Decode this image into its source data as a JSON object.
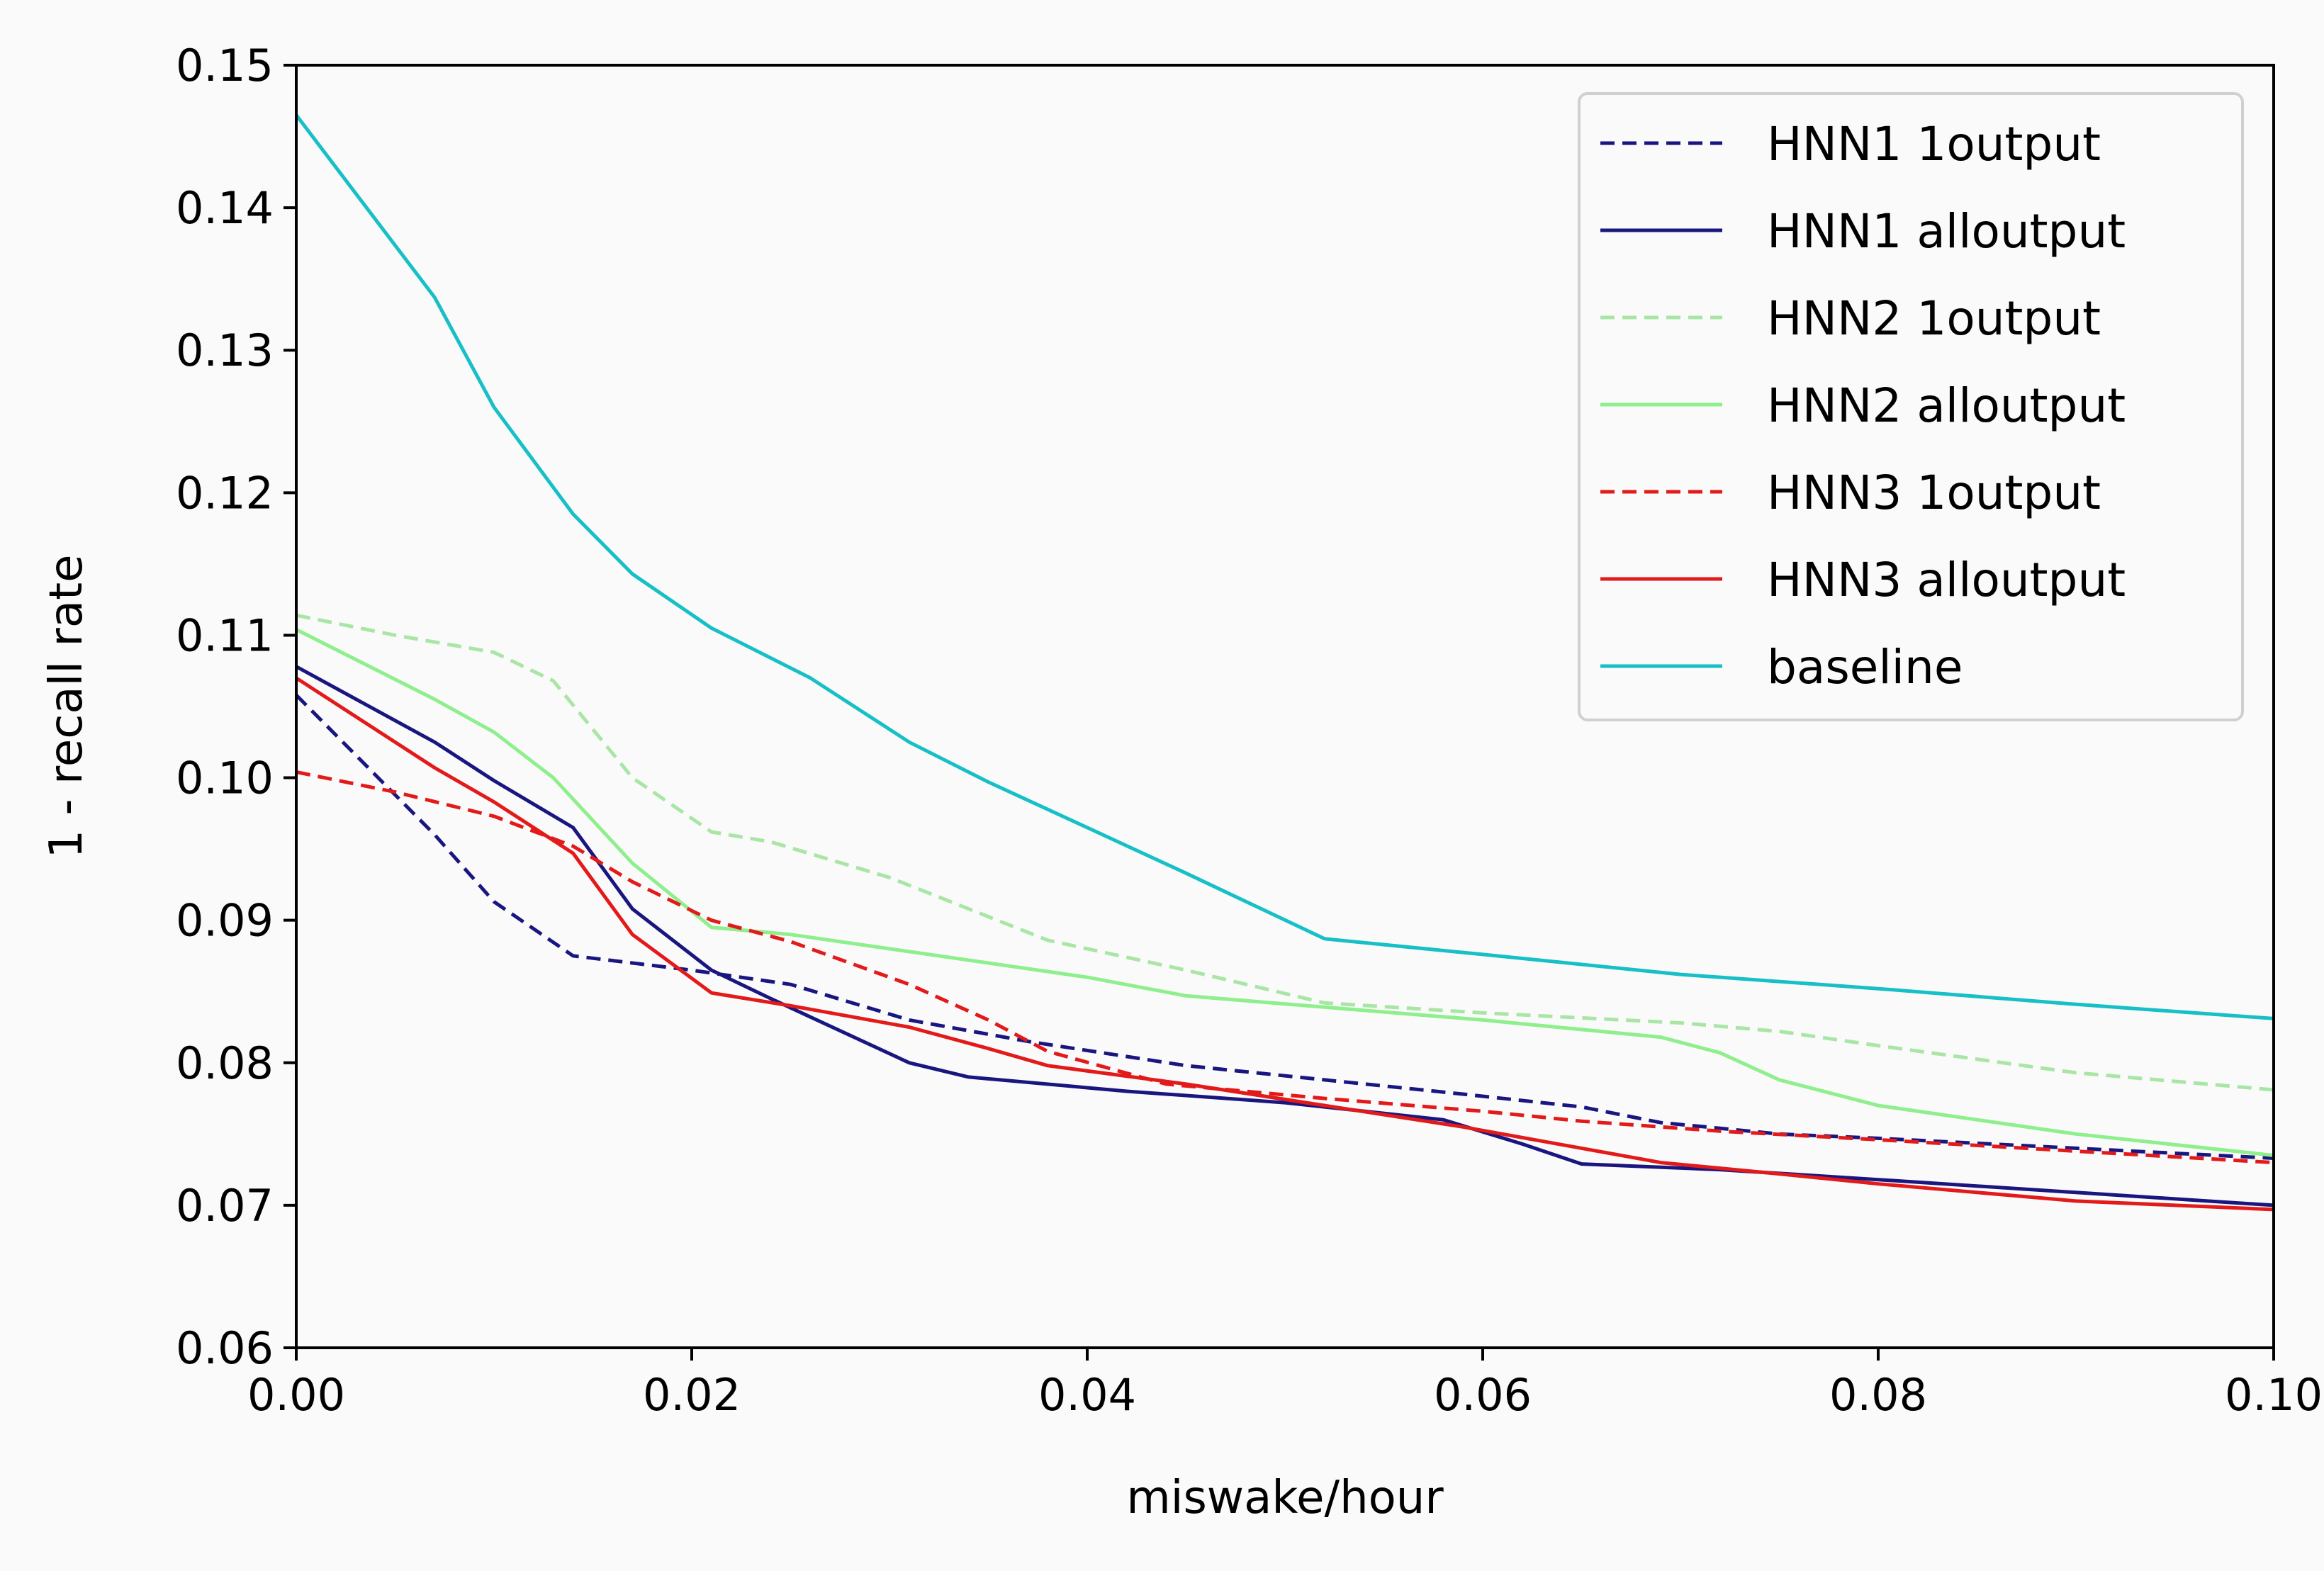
{
  "chart_data": {
    "type": "line",
    "title": "",
    "xlabel": "miswake/hour",
    "ylabel": "1 - recall rate",
    "xlim": [
      0.0,
      0.1
    ],
    "ylim": [
      0.06,
      0.15
    ],
    "xticks": [
      "0.00",
      "0.02",
      "0.04",
      "0.06",
      "0.08",
      "0.10"
    ],
    "yticks": [
      "0.06",
      "0.07",
      "0.08",
      "0.09",
      "0.10",
      "0.11",
      "0.12",
      "0.13",
      "0.14",
      "0.15"
    ],
    "xtick_values": [
      0.0,
      0.02,
      0.04,
      0.06,
      0.08,
      0.1
    ],
    "ytick_values": [
      0.06,
      0.07,
      0.08,
      0.09,
      0.1,
      0.11,
      0.12,
      0.13,
      0.14,
      0.15
    ],
    "grid": false,
    "legend_position": "top-right",
    "series": [
      {
        "name": "HNN1 1output",
        "color": "#1a1680",
        "style": "dashed",
        "points": [
          [
            0.0,
            0.1058
          ],
          [
            0.007,
            0.096
          ],
          [
            0.01,
            0.0913
          ],
          [
            0.014,
            0.0875
          ],
          [
            0.02,
            0.0865
          ],
          [
            0.025,
            0.0855
          ],
          [
            0.031,
            0.083
          ],
          [
            0.037,
            0.0815
          ],
          [
            0.045,
            0.0798
          ],
          [
            0.052,
            0.0788
          ],
          [
            0.059,
            0.0778
          ],
          [
            0.065,
            0.0769
          ],
          [
            0.069,
            0.0758
          ],
          [
            0.075,
            0.075
          ],
          [
            0.08,
            0.0747
          ],
          [
            0.09,
            0.074
          ],
          [
            0.1,
            0.0733
          ]
        ]
      },
      {
        "name": "HNN1 alloutput",
        "color": "#1a1680",
        "style": "solid",
        "points": [
          [
            0.0,
            0.1078
          ],
          [
            0.007,
            0.1025
          ],
          [
            0.01,
            0.0998
          ],
          [
            0.014,
            0.0965
          ],
          [
            0.017,
            0.0908
          ],
          [
            0.021,
            0.0865
          ],
          [
            0.024,
            0.0845
          ],
          [
            0.031,
            0.08
          ],
          [
            0.034,
            0.079
          ],
          [
            0.042,
            0.078
          ],
          [
            0.05,
            0.0772
          ],
          [
            0.058,
            0.076
          ],
          [
            0.062,
            0.0743
          ],
          [
            0.065,
            0.0729
          ],
          [
            0.072,
            0.0725
          ],
          [
            0.08,
            0.0718
          ],
          [
            0.09,
            0.0709
          ],
          [
            0.1,
            0.07
          ]
        ]
      },
      {
        "name": "HNN2 1output",
        "color": "#a9e6a6",
        "style": "dashed",
        "points": [
          [
            0.0,
            0.1114
          ],
          [
            0.005,
            0.11
          ],
          [
            0.01,
            0.1088
          ],
          [
            0.013,
            0.1068
          ],
          [
            0.017,
            0.1
          ],
          [
            0.021,
            0.0962
          ],
          [
            0.024,
            0.0955
          ],
          [
            0.03,
            0.093
          ],
          [
            0.038,
            0.0886
          ],
          [
            0.045,
            0.0865
          ],
          [
            0.052,
            0.0842
          ],
          [
            0.06,
            0.0835
          ],
          [
            0.07,
            0.0828
          ],
          [
            0.075,
            0.0822
          ],
          [
            0.08,
            0.0812
          ],
          [
            0.09,
            0.0793
          ],
          [
            0.1,
            0.0781
          ]
        ]
      },
      {
        "name": "HNN2 alloutput",
        "color": "#8eef8c",
        "style": "solid",
        "points": [
          [
            0.0,
            0.1104
          ],
          [
            0.007,
            0.1055
          ],
          [
            0.01,
            0.1032
          ],
          [
            0.013,
            0.1
          ],
          [
            0.017,
            0.094
          ],
          [
            0.021,
            0.0895
          ],
          [
            0.025,
            0.089
          ],
          [
            0.031,
            0.0878
          ],
          [
            0.04,
            0.086
          ],
          [
            0.045,
            0.0847
          ],
          [
            0.052,
            0.0839
          ],
          [
            0.06,
            0.083
          ],
          [
            0.069,
            0.0818
          ],
          [
            0.072,
            0.0807
          ],
          [
            0.075,
            0.0788
          ],
          [
            0.08,
            0.077
          ],
          [
            0.09,
            0.075
          ],
          [
            0.1,
            0.0735
          ]
        ]
      },
      {
        "name": "HNN3 1output",
        "color": "#e31a1a",
        "style": "dashed",
        "points": [
          [
            0.0,
            0.1004
          ],
          [
            0.005,
            0.099
          ],
          [
            0.01,
            0.0973
          ],
          [
            0.014,
            0.0952
          ],
          [
            0.017,
            0.0927
          ],
          [
            0.021,
            0.09
          ],
          [
            0.025,
            0.0885
          ],
          [
            0.031,
            0.0855
          ],
          [
            0.035,
            0.083
          ],
          [
            0.038,
            0.0808
          ],
          [
            0.044,
            0.0785
          ],
          [
            0.052,
            0.0775
          ],
          [
            0.06,
            0.0766
          ],
          [
            0.065,
            0.0759
          ],
          [
            0.072,
            0.0752
          ],
          [
            0.08,
            0.0746
          ],
          [
            0.09,
            0.0738
          ],
          [
            0.1,
            0.073
          ]
        ]
      },
      {
        "name": "HNN3 alloutput",
        "color": "#e31a1a",
        "style": "solid",
        "points": [
          [
            0.0,
            0.107
          ],
          [
            0.007,
            0.1007
          ],
          [
            0.01,
            0.0983
          ],
          [
            0.014,
            0.0947
          ],
          [
            0.017,
            0.089
          ],
          [
            0.021,
            0.0849
          ],
          [
            0.025,
            0.084
          ],
          [
            0.031,
            0.0825
          ],
          [
            0.035,
            0.081
          ],
          [
            0.038,
            0.0798
          ],
          [
            0.045,
            0.0785
          ],
          [
            0.052,
            0.077
          ],
          [
            0.059,
            0.0755
          ],
          [
            0.065,
            0.074
          ],
          [
            0.069,
            0.073
          ],
          [
            0.075,
            0.0722
          ],
          [
            0.08,
            0.0715
          ],
          [
            0.09,
            0.0703
          ],
          [
            0.1,
            0.0697
          ]
        ]
      },
      {
        "name": "baseline",
        "color": "#17bfc6",
        "style": "solid",
        "points": [
          [
            0.0,
            0.1465
          ],
          [
            0.007,
            0.1337
          ],
          [
            0.01,
            0.126
          ],
          [
            0.014,
            0.1185
          ],
          [
            0.017,
            0.1143
          ],
          [
            0.021,
            0.1105
          ],
          [
            0.026,
            0.107
          ],
          [
            0.031,
            0.1025
          ],
          [
            0.035,
            0.0997
          ],
          [
            0.04,
            0.0965
          ],
          [
            0.045,
            0.0933
          ],
          [
            0.052,
            0.0887
          ],
          [
            0.06,
            0.0876
          ],
          [
            0.07,
            0.0862
          ],
          [
            0.08,
            0.0852
          ],
          [
            0.09,
            0.0841
          ],
          [
            0.1,
            0.0831
          ]
        ]
      }
    ]
  }
}
